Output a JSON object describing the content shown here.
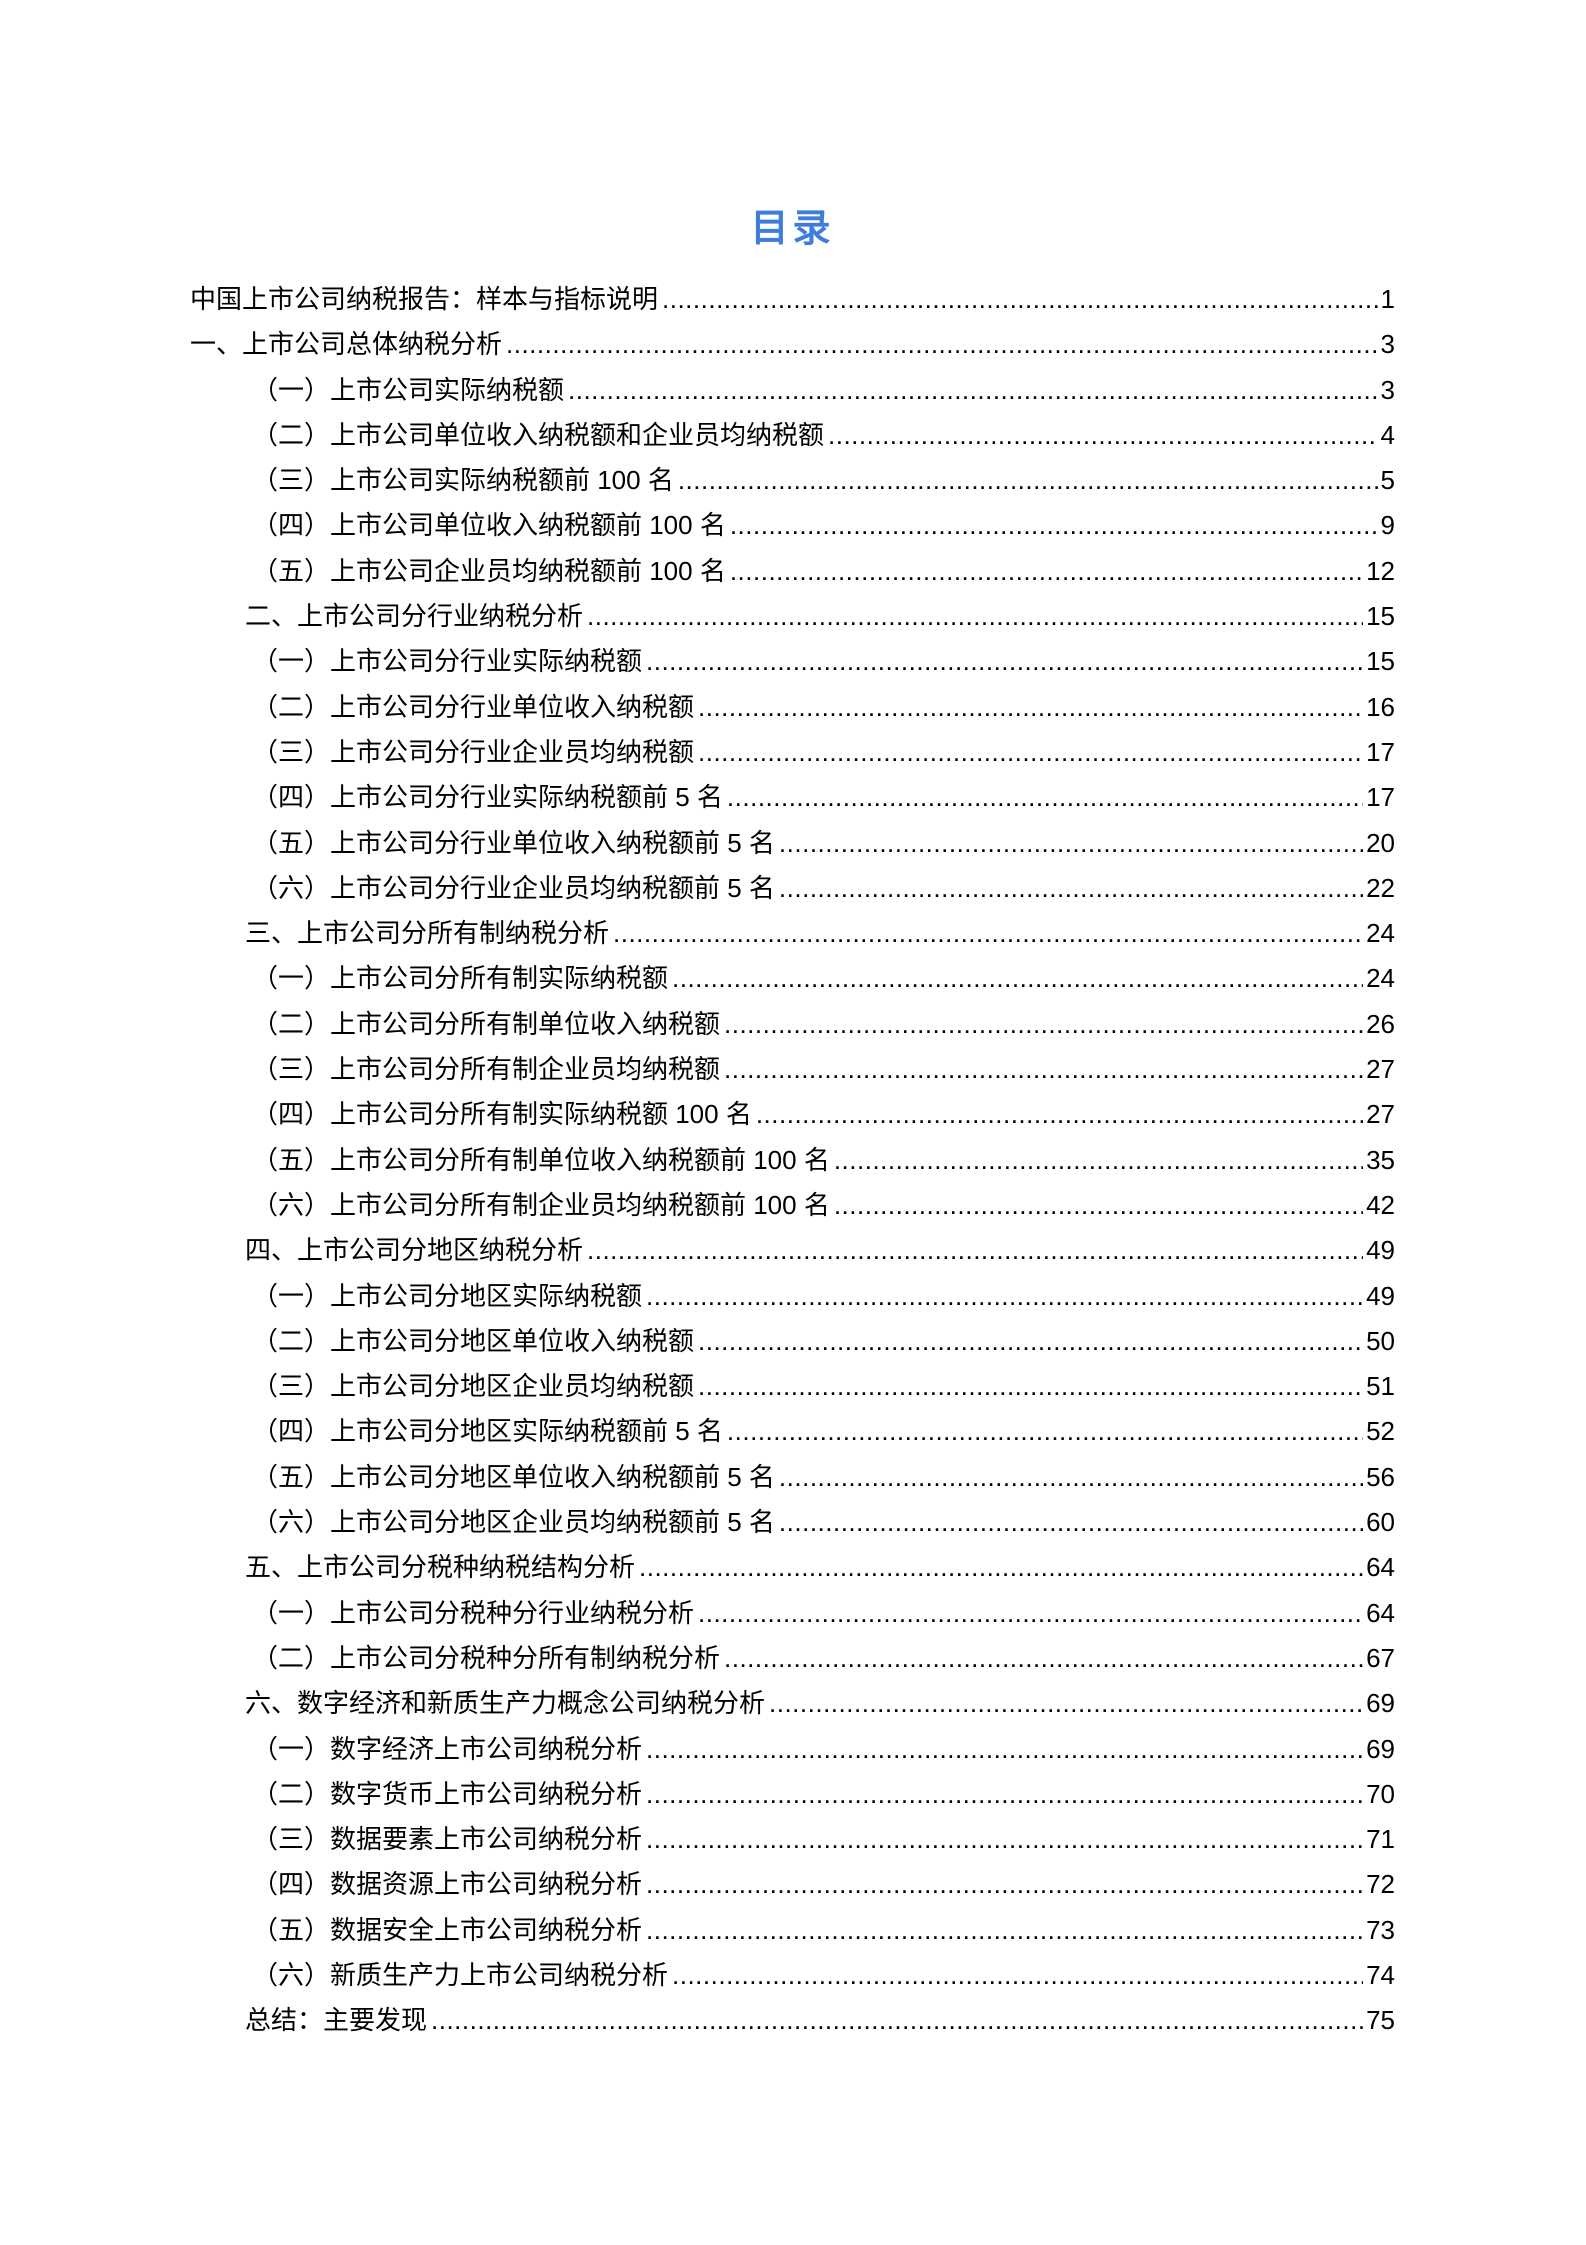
{
  "document": {
    "title": "目录",
    "accent_color": "#3E7DDB",
    "text_color": "#000000"
  },
  "toc": {
    "entries": [
      {
        "label": "中国上市公司纳税报告：样本与指标说明",
        "page": "1",
        "level": 0
      },
      {
        "label": "一、上市公司总体纳税分析",
        "page": "3",
        "level": 0
      },
      {
        "label": "（一）上市公司实际纳税额",
        "page": "3",
        "level": 2
      },
      {
        "label": "（二）上市公司单位收入纳税额和企业员均纳税额",
        "page": "4",
        "level": 2
      },
      {
        "label": "（三）上市公司实际纳税额前 100 名",
        "page": "5",
        "level": 2
      },
      {
        "label": "（四）上市公司单位收入纳税额前 100 名",
        "page": "9",
        "level": 2
      },
      {
        "label": "（五）上市公司企业员均纳税额前 100 名",
        "page": "12",
        "level": 2
      },
      {
        "label": "二、上市公司分行业纳税分析",
        "page": "15",
        "level": 1
      },
      {
        "label": "（一）上市公司分行业实际纳税额",
        "page": "15",
        "level": 2
      },
      {
        "label": "（二）上市公司分行业单位收入纳税额",
        "page": "16",
        "level": 2
      },
      {
        "label": "（三）上市公司分行业企业员均纳税额",
        "page": "17",
        "level": 2
      },
      {
        "label": "（四）上市公司分行业实际纳税额前 5 名",
        "page": "17",
        "level": 2
      },
      {
        "label": "（五）上市公司分行业单位收入纳税额前 5 名",
        "page": "20",
        "level": 2
      },
      {
        "label": "（六）上市公司分行业企业员均纳税额前 5 名",
        "page": "22",
        "level": 2
      },
      {
        "label": "三、上市公司分所有制纳税分析",
        "page": "24",
        "level": 1
      },
      {
        "label": "（一）上市公司分所有制实际纳税额",
        "page": "24",
        "level": 2
      },
      {
        "label": "（二）上市公司分所有制单位收入纳税额",
        "page": "26",
        "level": 2
      },
      {
        "label": "（三）上市公司分所有制企业员均纳税额",
        "page": "27",
        "level": 2
      },
      {
        "label": "（四）上市公司分所有制实际纳税额 100 名",
        "page": "27",
        "level": 2
      },
      {
        "label": "（五）上市公司分所有制单位收入纳税额前 100 名",
        "page": "35",
        "level": 2
      },
      {
        "label": "（六）上市公司分所有制企业员均纳税额前 100 名",
        "page": "42",
        "level": 2
      },
      {
        "label": "四、上市公司分地区纳税分析",
        "page": "49",
        "level": 1
      },
      {
        "label": "（一）上市公司分地区实际纳税额",
        "page": "49",
        "level": 2
      },
      {
        "label": "（二）上市公司分地区单位收入纳税额",
        "page": "50",
        "level": 2
      },
      {
        "label": "（三）上市公司分地区企业员均纳税额",
        "page": "51",
        "level": 2
      },
      {
        "label": "（四）上市公司分地区实际纳税额前 5 名",
        "page": "52",
        "level": 2
      },
      {
        "label": "（五）上市公司分地区单位收入纳税额前 5 名",
        "page": "56",
        "level": 2
      },
      {
        "label": "（六）上市公司分地区企业员均纳税额前 5 名",
        "page": "60",
        "level": 2
      },
      {
        "label": "五、上市公司分税种纳税结构分析",
        "page": "64",
        "level": 1
      },
      {
        "label": "（一）上市公司分税种分行业纳税分析",
        "page": "64",
        "level": 2
      },
      {
        "label": "（二）上市公司分税种分所有制纳税分析",
        "page": "67",
        "level": 2
      },
      {
        "label": "六、数字经济和新质生产力概念公司纳税分析",
        "page": "69",
        "level": 1
      },
      {
        "label": "（一）数字经济上市公司纳税分析",
        "page": "69",
        "level": 2
      },
      {
        "label": "（二）数字货币上市公司纳税分析",
        "page": "70",
        "level": 2
      },
      {
        "label": "（三）数据要素上市公司纳税分析",
        "page": "71",
        "level": 2
      },
      {
        "label": "（四）数据资源上市公司纳税分析",
        "page": "72",
        "level": 2
      },
      {
        "label": "（五）数据安全上市公司纳税分析",
        "page": "73",
        "level": 2
      },
      {
        "label": "（六）新质生产力上市公司纳税分析",
        "page": "74",
        "level": 2
      },
      {
        "label": "总结：主要发现",
        "page": "75",
        "level": 1
      }
    ]
  }
}
